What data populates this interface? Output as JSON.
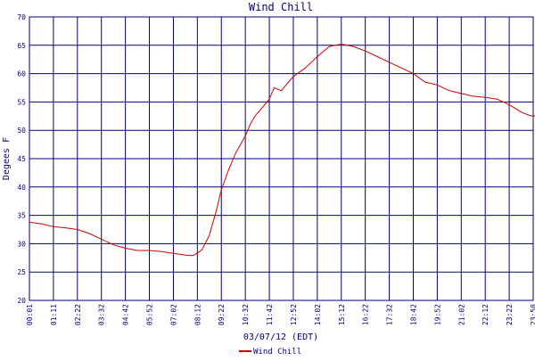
{
  "chart_data": {
    "type": "line",
    "title": "Wind Chill",
    "xlabel": "03/07/12 (EDT)",
    "ylabel": "Degees F",
    "ylim": [
      20,
      70
    ],
    "yticks": [
      20,
      25,
      30,
      35,
      40,
      45,
      50,
      55,
      60,
      65,
      70
    ],
    "xticks": [
      "00:01",
      "01:11",
      "02:22",
      "03:32",
      "04:42",
      "05:52",
      "07:02",
      "08:12",
      "09:22",
      "10:32",
      "11:42",
      "12:52",
      "14:02",
      "15:12",
      "16:22",
      "17:32",
      "18:42",
      "19:52",
      "21:02",
      "22:12",
      "23:22",
      "23:50"
    ],
    "grid": true,
    "legend_position": "bottom",
    "colors": {
      "series": "#cc0000",
      "grid": "#000080",
      "text": "#000080"
    },
    "series": [
      {
        "name": "Wind Chill",
        "x": [
          0,
          0.5,
          1,
          1.5,
          2,
          2.5,
          3,
          3.5,
          4,
          4.5,
          5,
          5.5,
          6,
          6.5,
          6.8,
          7,
          7.2,
          7.5,
          7.8,
          8,
          8.3,
          8.6,
          9,
          9.2,
          9.4,
          9.7,
          10,
          10.2,
          10.5,
          10.8,
          11,
          11.5,
          12,
          12.5,
          13,
          13.5,
          14,
          14.5,
          15,
          15.5,
          16,
          16.5,
          17,
          17.5,
          18,
          18.5,
          19,
          19.5,
          20,
          20.2,
          20.5,
          20.8,
          21,
          21.3,
          21.6,
          21.9,
          22.1,
          22.4,
          22.7
        ],
        "y": [
          33.8,
          33.5,
          33.0,
          32.8,
          32.5,
          31.8,
          30.8,
          29.8,
          29.2,
          28.8,
          28.8,
          28.6,
          28.3,
          28.0,
          27.9,
          28.3,
          29.0,
          31.5,
          36.0,
          39.5,
          43.0,
          46.0,
          49.0,
          51.0,
          52.5,
          54.0,
          55.5,
          57.5,
          57.0,
          58.5,
          59.5,
          61.0,
          63.0,
          64.8,
          65.2,
          64.8,
          64.0,
          63.0,
          62.0,
          61.0,
          60.0,
          58.5,
          58.0,
          57.0,
          56.5,
          56.0,
          55.8,
          55.5,
          54.5,
          54.0,
          53.2,
          52.7,
          52.5,
          52.9,
          53.2,
          53.2,
          53.0,
          52.8,
          52.6
        ]
      }
    ]
  }
}
